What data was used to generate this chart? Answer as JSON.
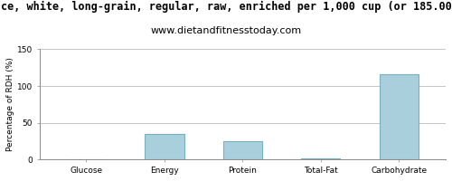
{
  "title_line1": "ce, white, long-grain, regular, raw, enriched per 1,000 cup (or 185.00",
  "title_line2": "www.dietandfitnesstoday.com",
  "categories": [
    "Glucose",
    "Energy",
    "Protein",
    "Total-Fat",
    "Carbohydrate"
  ],
  "values": [
    0,
    35,
    25,
    2,
    116
  ],
  "bar_color": "#aacfdc",
  "bar_edge_color": "#7aafc0",
  "ylabel": "Percentage of RDH (%)",
  "ylim": [
    0,
    150
  ],
  "yticks": [
    0,
    50,
    100,
    150
  ],
  "background_color": "#ffffff",
  "grid_color": "#bbbbbb",
  "title_fontsize": 8.5,
  "subtitle_fontsize": 8,
  "ylabel_fontsize": 6.5,
  "tick_fontsize": 6.5
}
